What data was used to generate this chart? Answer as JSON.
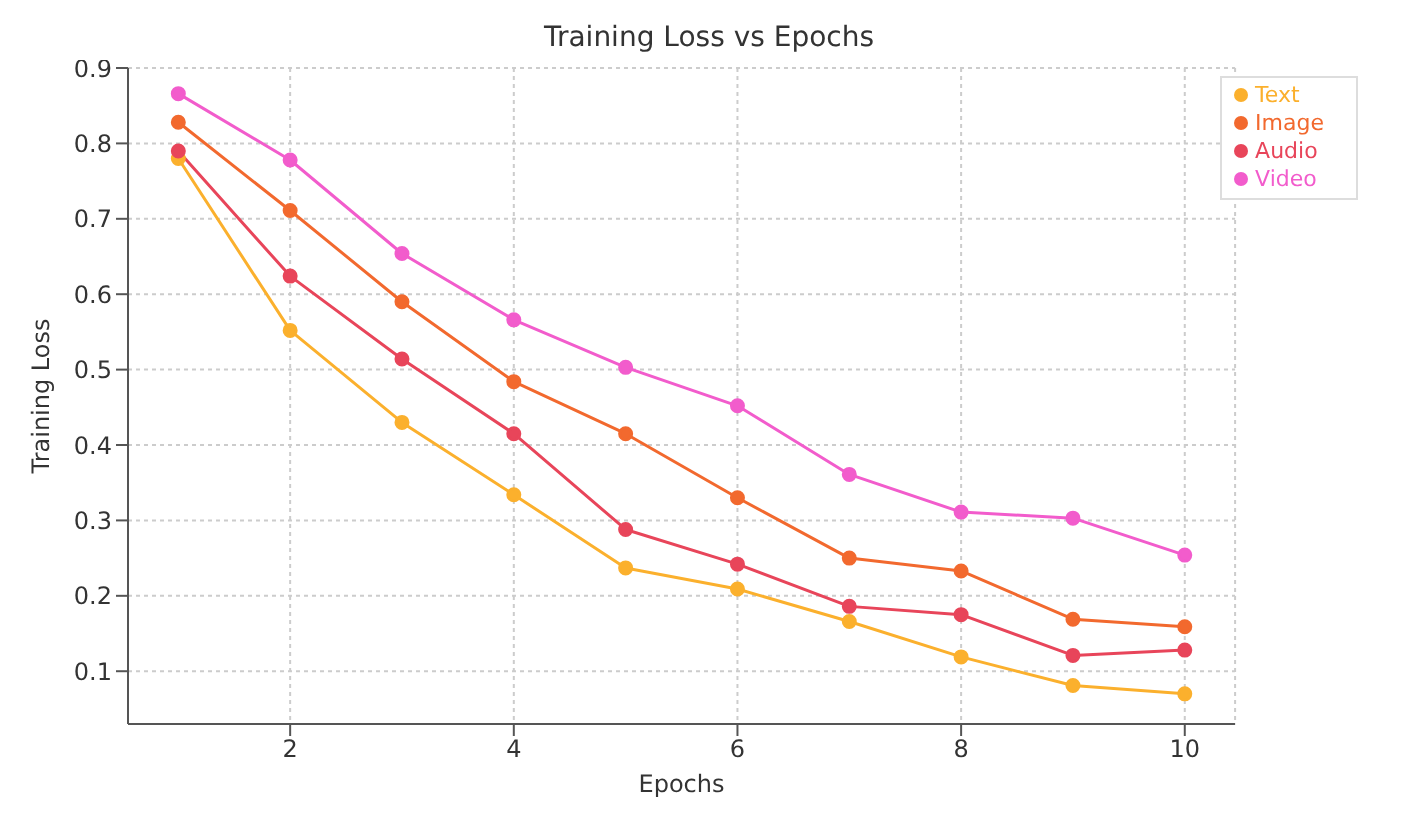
{
  "chart_data": {
    "type": "line",
    "title": "Training Loss vs Epochs",
    "xlabel": "Epochs",
    "ylabel": "Training Loss",
    "x": [
      1,
      2,
      3,
      4,
      5,
      6,
      7,
      8,
      9,
      10
    ],
    "series": [
      {
        "name": "Text",
        "color": "#fbb02d",
        "values": [
          0.78,
          0.552,
          0.43,
          0.334,
          0.237,
          0.209,
          0.166,
          0.119,
          0.081,
          0.07
        ]
      },
      {
        "name": "Image",
        "color": "#f2692e",
        "values": [
          0.828,
          0.711,
          0.59,
          0.484,
          0.415,
          0.33,
          0.25,
          0.233,
          0.169,
          0.159
        ]
      },
      {
        "name": "Audio",
        "color": "#e8455a",
        "values": [
          0.79,
          0.624,
          0.514,
          0.415,
          0.288,
          0.242,
          0.186,
          0.175,
          0.121,
          0.128
        ]
      },
      {
        "name": "Video",
        "color": "#f25ccc",
        "values": [
          0.866,
          0.778,
          0.654,
          0.566,
          0.503,
          0.452,
          0.361,
          0.311,
          0.303,
          0.254
        ]
      }
    ],
    "xlim": [
      0.55,
      10.45
    ],
    "xticks": [
      2,
      4,
      6,
      8,
      10
    ],
    "ylim": [
      0.03,
      0.9
    ],
    "yticks": [
      0.1,
      0.2,
      0.3,
      0.4,
      0.5,
      0.6,
      0.7,
      0.8,
      0.9
    ],
    "grid": true,
    "legend": "top right",
    "marker": "circle",
    "line_style": "solid"
  }
}
